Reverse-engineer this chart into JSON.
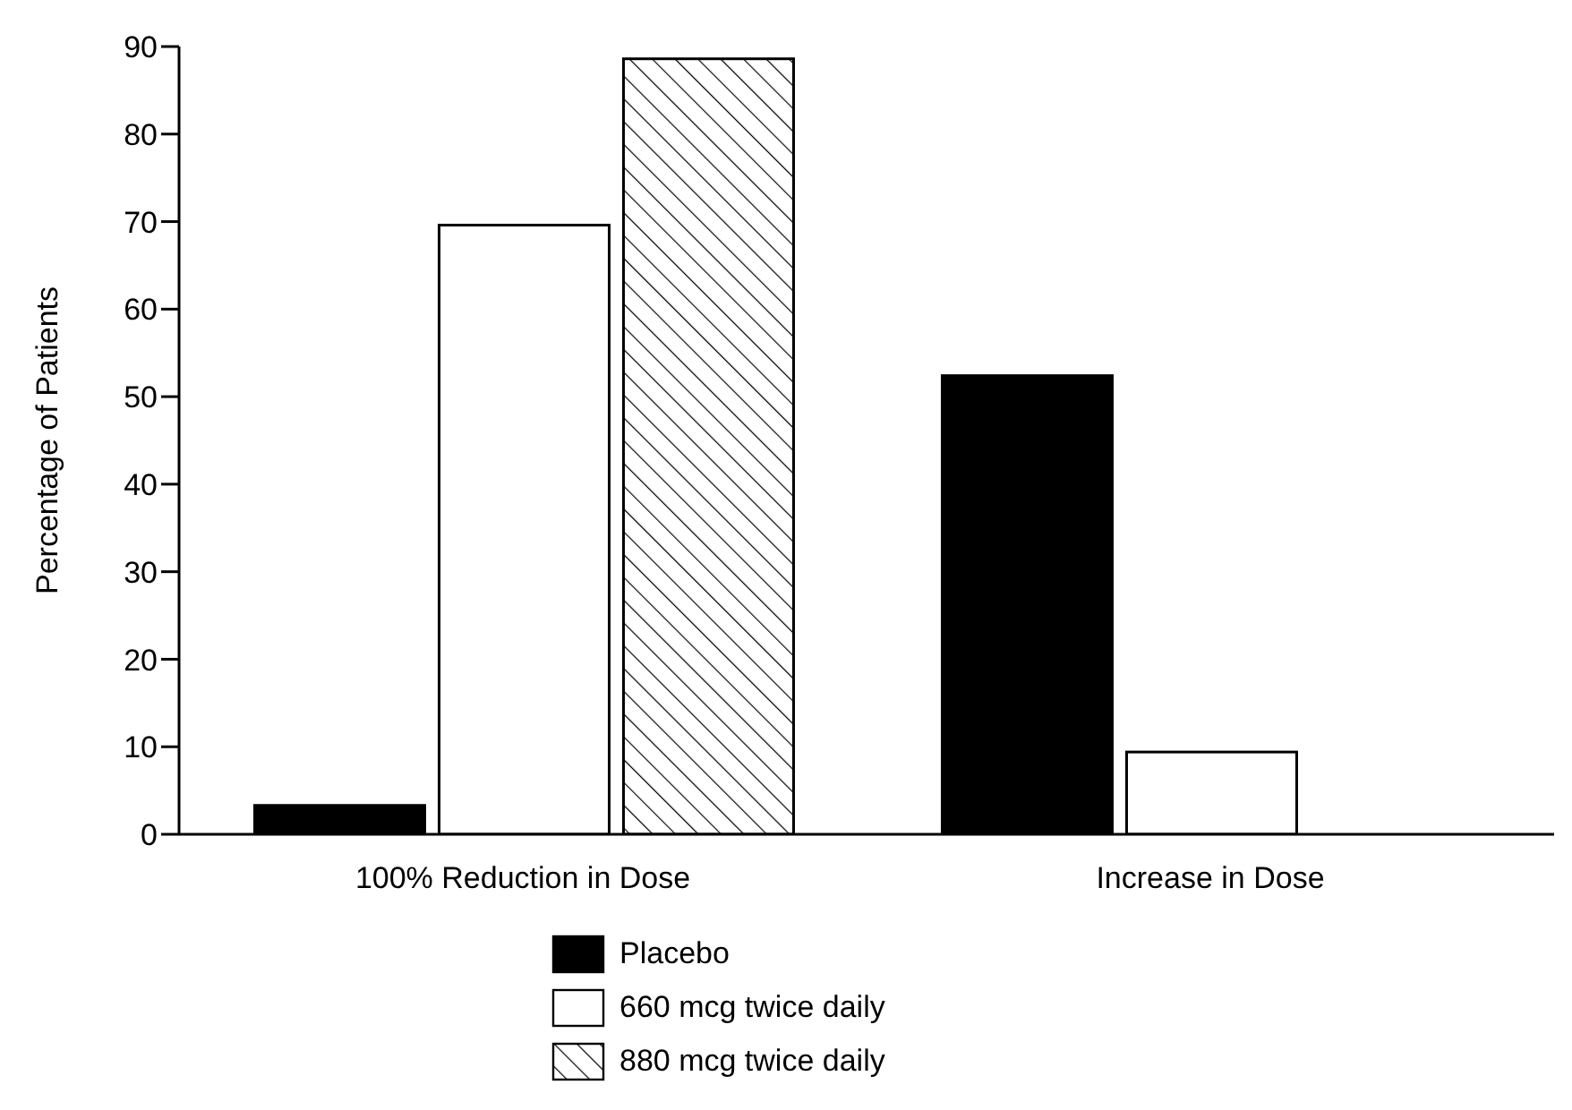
{
  "chart_data": {
    "type": "bar",
    "ylabel": "Percentage of Patients",
    "categories": [
      "100% Reduction in Dose",
      "Increase in Dose"
    ],
    "series": [
      {
        "name": "Placebo",
        "color": "#000000",
        "values": [
          3.3,
          52.4
        ]
      },
      {
        "name": "660 mcg twice daily",
        "color": "#ffffff",
        "values": [
          69.6,
          9.4
        ]
      },
      {
        "name": "880 mcg twice daily",
        "color": "#ffffff",
        "values": [
          88.6,
          null
        ]
      }
    ],
    "ylim": [
      0,
      90
    ],
    "yticks": [
      0,
      10,
      20,
      30,
      40,
      50,
      60,
      70,
      80,
      90
    ],
    "legend": "bottom"
  }
}
